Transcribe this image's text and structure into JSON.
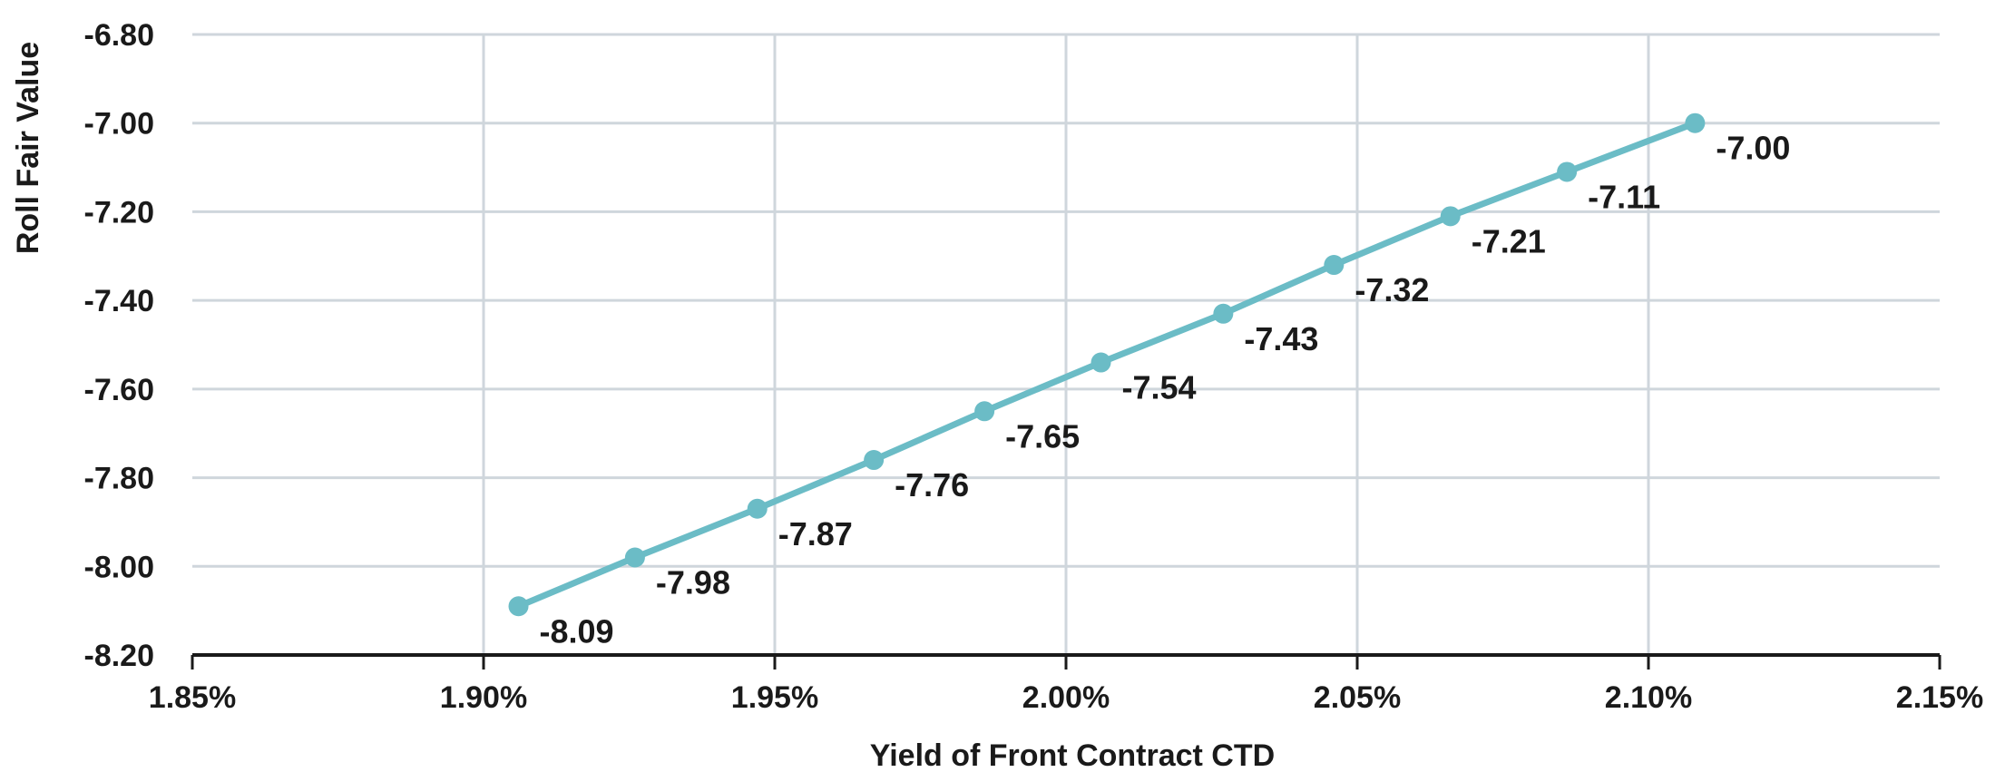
{
  "chart_data": {
    "type": "line",
    "title": "",
    "xlabel": "Yield of Front Contract CTD",
    "ylabel": "Roll Fair Value",
    "xlim": [
      1.85,
      2.15
    ],
    "ylim": [
      -8.2,
      -6.8
    ],
    "x_ticks": [
      1.85,
      1.9,
      1.95,
      2.0,
      2.05,
      2.1,
      2.15
    ],
    "x_tick_labels": [
      "1.85%",
      "1.90%",
      "1.95%",
      "2.00%",
      "2.05%",
      "2.10%",
      "2.15%"
    ],
    "y_ticks": [
      -6.8,
      -7.0,
      -7.2,
      -7.4,
      -7.6,
      -7.8,
      -8.0,
      -8.2
    ],
    "y_tick_labels": [
      "-6.80",
      "-7.00",
      "-7.20",
      "-7.40",
      "-7.60",
      "-7.80",
      "-8.00",
      "-8.20"
    ],
    "grid": true,
    "legend": "none",
    "series": [
      {
        "x": [
          1.906,
          1.926,
          1.947,
          1.967,
          1.986,
          2.006,
          2.027,
          2.046,
          2.066,
          2.086,
          2.108
        ],
        "values": [
          -8.09,
          -7.98,
          -7.87,
          -7.76,
          -7.65,
          -7.54,
          -7.43,
          -7.32,
          -7.21,
          -7.11,
          -7.0
        ],
        "data_labels": [
          "-8.09",
          "-7.98",
          "-7.87",
          "-7.76",
          "-7.65",
          "-7.54",
          "-7.43",
          "-7.32",
          "-7.21",
          "-7.11",
          "-7.00"
        ],
        "color": "#6bbcc6"
      }
    ],
    "grid_color": "#cfd6dc",
    "axis_color": "#1a1a1a"
  }
}
